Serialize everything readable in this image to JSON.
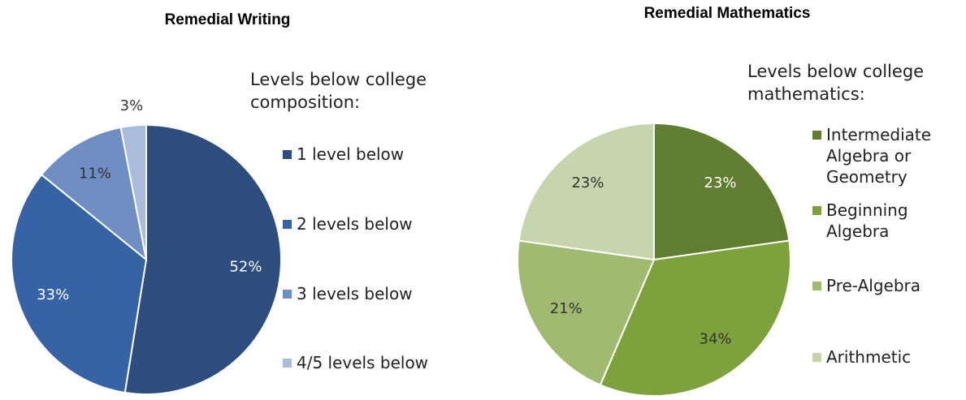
{
  "chart_data": [
    {
      "type": "pie",
      "title": "Remedial Writing",
      "legend_title": "Levels below college composition:",
      "categories": [
        "1 level below",
        "2 levels below",
        "3 levels below",
        "4/5 levels below"
      ],
      "values": [
        52,
        33,
        11,
        3
      ],
      "value_labels": [
        "52%",
        "33%",
        "11%",
        "3%"
      ],
      "colors": [
        "#2c4d7e",
        "#3563a5",
        "#6f8fc4",
        "#a9bcdc"
      ]
    },
    {
      "type": "pie",
      "title": "Remedial Mathematics",
      "legend_title": "Levels below college mathematics:",
      "categories": [
        "Intermediate Algebra or Geometry",
        "Beginning Algebra",
        "Pre-Algebra",
        "Arithmetic"
      ],
      "values": [
        23,
        34,
        21,
        23
      ],
      "value_labels": [
        "23%",
        "34%",
        "21%",
        "23%"
      ],
      "colors": [
        "#617d2f",
        "#7da23c",
        "#a0bb70",
        "#c7d5ad"
      ]
    }
  ]
}
